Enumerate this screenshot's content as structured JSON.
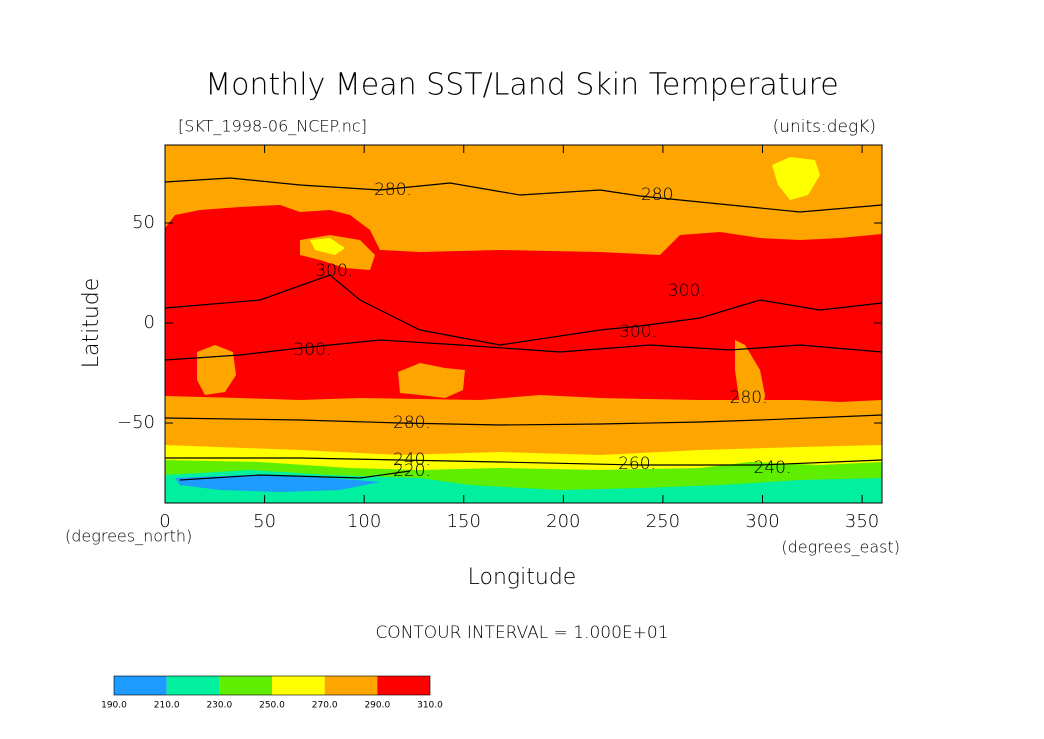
{
  "chart_data": {
    "type": "contour",
    "title": "Monthly Mean SST/Land Skin Temperature",
    "subtitle_left": "[SKT_1998-06_NCEP.nc]",
    "subtitle_right": "(units:degK)",
    "x_label": "Longitude",
    "y_label": "Latitude",
    "x_units": "(degrees_east)",
    "y_units": "(degrees_north)",
    "note": "CONTOUR INTERVAL = 1.000E+01",
    "xlim": [
      0,
      360
    ],
    "ylim": [
      -90,
      89
    ],
    "xticks": [
      0,
      50,
      100,
      150,
      200,
      250,
      300,
      350
    ],
    "yticks": [
      {
        "value": -50,
        "label": "−50"
      },
      0,
      50
    ],
    "colorbar": {
      "levels": [
        {
          "value": 190,
          "label": "190.0"
        },
        {
          "value": 210,
          "label": "210.0"
        },
        {
          "value": 230,
          "label": "230.0"
        },
        {
          "value": 250,
          "label": "250.0"
        },
        {
          "value": 270,
          "label": "270.0"
        },
        {
          "value": 290,
          "label": "290.0"
        },
        {
          "value": 310,
          "label": "310.0"
        }
      ],
      "colors": [
        "#1e9bff",
        "#00f0a0",
        "#60ee00",
        "#ffff00",
        "#ffa500",
        "#ff0000"
      ]
    },
    "contour_labels": [
      {
        "value": 280,
        "label": "280.",
        "x": 114.5,
        "y": 66.5
      },
      {
        "value": 280,
        "label": "280.",
        "x": 248.5,
        "y": 64
      },
      {
        "value": 300,
        "label": "300.",
        "x": 85,
        "y": 26
      },
      {
        "value": 300,
        "label": "300.",
        "x": 262,
        "y": 16
      },
      {
        "value": 300,
        "label": "300.",
        "x": 237.5,
        "y": -4.5
      },
      {
        "value": 300,
        "label": "300.",
        "x": 74,
        "y": -13.5
      },
      {
        "value": 280,
        "label": "280.",
        "x": 293,
        "y": -37.5
      },
      {
        "value": 280,
        "label": "280.",
        "x": 124,
        "y": -50
      },
      {
        "value": 240,
        "label": "240.",
        "x": 124,
        "y": -68.5
      },
      {
        "value": 220,
        "label": "220.",
        "x": 124,
        "y": -74
      },
      {
        "value": 260,
        "label": "260.",
        "x": 237,
        "y": -70.5
      },
      {
        "value": 240,
        "label": "240.",
        "x": 305,
        "y": -72.5
      }
    ]
  }
}
